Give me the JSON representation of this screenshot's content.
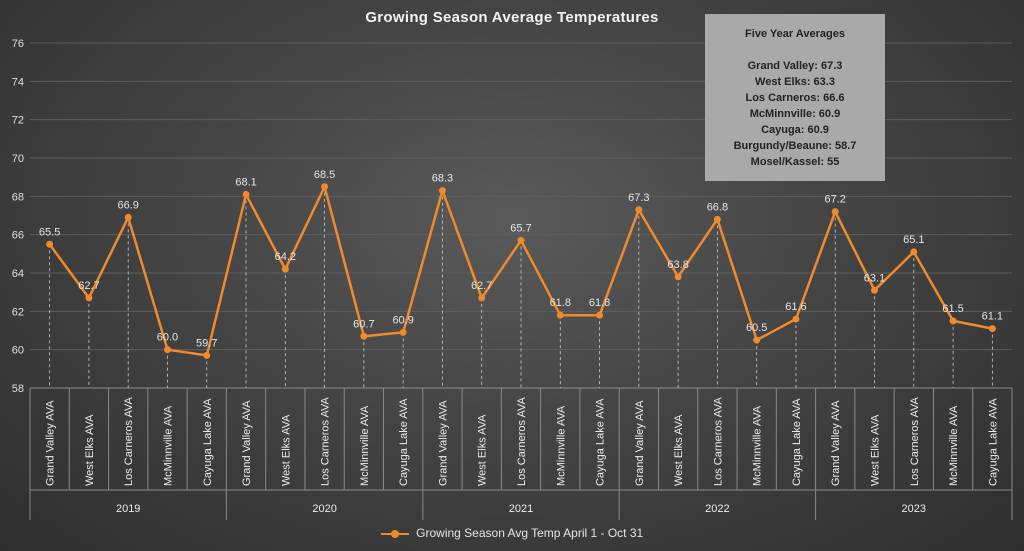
{
  "chart_data": {
    "type": "line",
    "title": "Growing Season Average Temperatures",
    "ylim": [
      58,
      76
    ],
    "yticks": [
      58,
      60,
      62,
      64,
      66,
      68,
      70,
      72,
      74,
      76
    ],
    "grid": true,
    "legend_position": "bottom",
    "groups": [
      {
        "label": "2019",
        "categories": [
          "Grand Valley AVA",
          "West Elks AVA",
          "Los Carneros AVA",
          "McMinnville AVA",
          "Cayuga Lake AVA"
        ]
      },
      {
        "label": "2020",
        "categories": [
          "Grand Valley AVA",
          "West Elks AVA",
          "Los Carneros AVA",
          "McMinnville AVA",
          "Cayuga Lake AVA"
        ]
      },
      {
        "label": "2021",
        "categories": [
          "Grand Valley AVA",
          "West Elks AVA",
          "Los Carneros AVA",
          "McMinnville AVA",
          "Cayuga Lake AVA"
        ]
      },
      {
        "label": "2022",
        "categories": [
          "Grand Valley AVA",
          "West Elks AVA",
          "Los Carneros AVA",
          "McMinnville AVA",
          "Cayuga Lake AVA"
        ]
      },
      {
        "label": "2023",
        "categories": [
          "Grand Valley AVA",
          "West Elks AVA",
          "Los Carneros AVA",
          "McMinnville AVA",
          "Cayuga Lake AVA"
        ]
      }
    ],
    "series": [
      {
        "name": "Growing Season Avg Temp April 1 - Oct 31",
        "color": "#f08a2c",
        "values": [
          65.5,
          62.7,
          66.9,
          60.0,
          59.7,
          68.1,
          64.2,
          68.5,
          60.7,
          60.9,
          68.3,
          62.7,
          65.7,
          61.8,
          61.8,
          67.3,
          63.8,
          66.8,
          60.5,
          61.6,
          67.2,
          63.1,
          65.1,
          61.5,
          61.1
        ],
        "labels": [
          "65.5",
          "62.7",
          "66.9",
          "60.0",
          "59.7",
          "68.1",
          "64.2",
          "68.5",
          "60.7",
          "60.9",
          "68.3",
          "62.7",
          "65.7",
          "61.8",
          "61.8",
          "67.3",
          "63.8",
          "66.8",
          "60.5",
          "61.6",
          "67.2",
          "63.1",
          "65.1",
          "61.5",
          "61.1"
        ]
      }
    ],
    "annotation": {
      "title": "Five Year Averages",
      "lines": [
        "Grand Valley: 67.3",
        "West Elks: 63.3",
        "Los Carneros: 66.6",
        "McMinnville: 60.9",
        "Cayuga: 60.9",
        "Burgundy/Beaune: 58.7",
        "Mosel/Kassel: 55"
      ]
    }
  }
}
